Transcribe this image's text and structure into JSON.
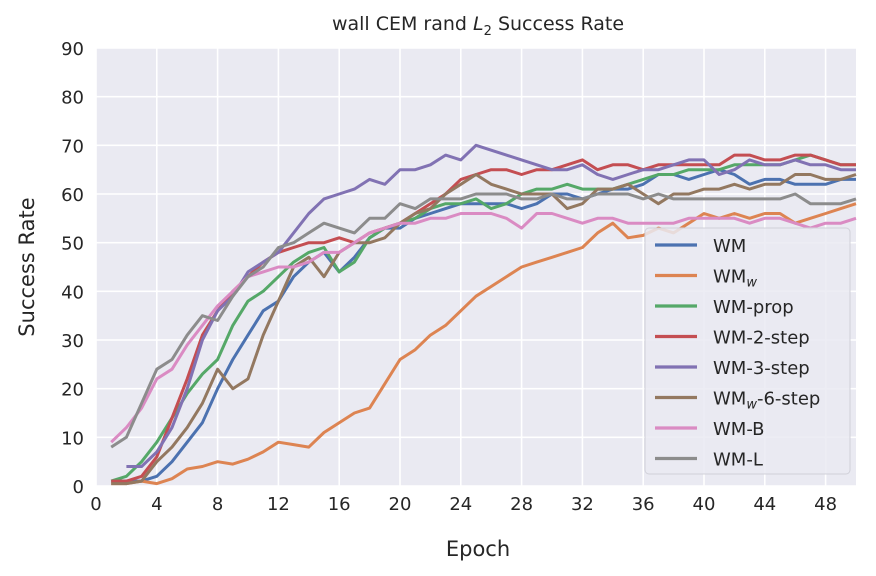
{
  "chart_data": {
    "type": "line",
    "title": "wall CEM rand L2 Success Rate",
    "title_parts": {
      "prefix": "wall CEM rand ",
      "var": "L",
      "sub": "2",
      "suffix": " Success Rate"
    },
    "xlabel": "Epoch",
    "ylabel": "Success Rate",
    "xlim": [
      0,
      50
    ],
    "ylim": [
      0,
      90
    ],
    "xticks": [
      0,
      4,
      8,
      12,
      16,
      20,
      24,
      28,
      32,
      36,
      40,
      44,
      48
    ],
    "yticks": [
      0,
      10,
      20,
      30,
      40,
      50,
      60,
      70,
      80,
      90
    ],
    "grid": true,
    "legend_position": "lower-right",
    "background": "#eaeaf2",
    "x": [
      1,
      2,
      3,
      4,
      5,
      6,
      7,
      8,
      9,
      10,
      11,
      12,
      13,
      14,
      15,
      16,
      17,
      18,
      19,
      20,
      21,
      22,
      23,
      24,
      25,
      26,
      27,
      28,
      29,
      30,
      31,
      32,
      33,
      34,
      35,
      36,
      37,
      38,
      39,
      40,
      41,
      42,
      43,
      44,
      45,
      46,
      47,
      48,
      49,
      50
    ],
    "series": [
      {
        "name": "WM",
        "label_main": "WM",
        "label_sub": "",
        "label_suffix": "",
        "color": "#4c72b0",
        "values": [
          1,
          1,
          1,
          2,
          5,
          9,
          13,
          20,
          26,
          31,
          36,
          38,
          43,
          46,
          48,
          44,
          47,
          51,
          53,
          53,
          55,
          56,
          57,
          58,
          58,
          58,
          58,
          57,
          58,
          60,
          60,
          59,
          60,
          61,
          61,
          62,
          64,
          64,
          63,
          64,
          65,
          64,
          62,
          63,
          63,
          62,
          62,
          62,
          63,
          63
        ]
      },
      {
        "name": "WMw",
        "label_main": "WM",
        "label_sub": "w",
        "label_suffix": "",
        "color": "#dd8452",
        "values": [
          0.5,
          0.5,
          1,
          0.5,
          1.5,
          3.5,
          4,
          5,
          4.5,
          5.5,
          7,
          9,
          8.5,
          8,
          11,
          13,
          15,
          16,
          21,
          26,
          28,
          31,
          33,
          36,
          39,
          41,
          43,
          45,
          46,
          47,
          48,
          49,
          52,
          54,
          51,
          51.5,
          53,
          52,
          54,
          56,
          55,
          56,
          55,
          56,
          56,
          54,
          55,
          56,
          57,
          58
        ]
      },
      {
        "name": "WM-prop",
        "label_main": "WM-prop",
        "label_sub": "",
        "label_suffix": "",
        "color": "#55a868",
        "values": [
          1,
          2,
          5,
          9,
          14,
          19,
          23,
          26,
          33,
          38,
          40,
          43,
          46,
          48,
          49,
          44,
          46,
          51,
          53,
          54,
          55,
          57,
          58,
          58,
          59,
          57,
          58,
          60,
          61,
          61,
          62,
          61,
          61,
          61,
          62,
          63,
          64,
          64,
          65,
          65,
          65,
          66,
          66,
          66,
          66,
          67,
          68,
          67,
          66,
          66
        ]
      },
      {
        "name": "WM-2-step",
        "label_main": "WM-2-step",
        "label_sub": "",
        "label_suffix": "",
        "color": "#c44e52",
        "values": [
          1,
          1,
          2,
          6,
          14,
          22,
          31,
          36,
          40,
          43,
          46,
          48,
          49,
          50,
          50,
          51,
          50,
          52,
          53,
          54,
          56,
          58,
          60,
          63,
          64,
          65,
          65,
          64,
          65,
          65,
          66,
          67,
          65,
          66,
          66,
          65,
          66,
          66,
          66,
          66,
          66,
          68,
          68,
          67,
          67,
          68,
          68,
          67,
          66,
          66
        ]
      },
      {
        "name": "WM-3-step",
        "label_main": "WM-3-step",
        "label_sub": "",
        "label_suffix": "",
        "color": "#8172b3",
        "values": [
          null,
          4,
          4,
          7,
          12,
          20,
          30,
          36,
          39,
          44,
          46,
          48,
          52,
          56,
          59,
          60,
          61,
          63,
          62,
          65,
          65,
          66,
          68,
          67,
          70,
          69,
          68,
          67,
          66,
          65,
          65,
          66,
          64,
          63,
          64,
          65,
          65,
          66,
          67,
          67,
          64,
          65,
          67,
          66,
          66,
          67,
          66,
          66,
          65,
          65
        ]
      },
      {
        "name": "WMw-6-step",
        "label_main": "WM",
        "label_sub": "w",
        "label_suffix": "-6-step",
        "color": "#937860",
        "values": [
          0.5,
          0.5,
          1,
          5,
          8,
          12,
          17,
          24,
          20,
          22,
          31,
          38,
          45,
          47,
          43,
          48,
          50,
          50,
          51,
          54,
          56,
          57,
          60,
          62,
          64,
          62,
          61,
          60,
          60,
          60,
          57,
          58,
          61,
          61,
          62,
          60,
          58,
          60,
          60,
          61,
          61,
          62,
          61,
          62,
          62,
          64,
          64,
          63,
          63,
          64
        ]
      },
      {
        "name": "WM-B",
        "label_main": "WM-B",
        "label_sub": "",
        "label_suffix": "",
        "color": "#da8bc3",
        "values": [
          9,
          12,
          16,
          22,
          24,
          29,
          33,
          37,
          40,
          43,
          44,
          45,
          45,
          46,
          48,
          48,
          50,
          52,
          53,
          54,
          54,
          55,
          55,
          56,
          56,
          56,
          55,
          53,
          56,
          56,
          55,
          54,
          55,
          55,
          54,
          54,
          54,
          54,
          55,
          55,
          55,
          55,
          54,
          55,
          55,
          54,
          53,
          54,
          54,
          55
        ]
      },
      {
        "name": "WM-L",
        "label_main": "WM-L",
        "label_sub": "",
        "label_suffix": "",
        "color": "#8c8c8c",
        "values": [
          8,
          10,
          17,
          24,
          26,
          31,
          35,
          34,
          39,
          43,
          45,
          49,
          50,
          52,
          54,
          53,
          52,
          55,
          55,
          58,
          57,
          59,
          59,
          59,
          60,
          60,
          60,
          59,
          59,
          60,
          59,
          59,
          60,
          60,
          60,
          59,
          60,
          59,
          59,
          59,
          59,
          59,
          59,
          59,
          59,
          60,
          58,
          58,
          58,
          59
        ]
      }
    ]
  }
}
